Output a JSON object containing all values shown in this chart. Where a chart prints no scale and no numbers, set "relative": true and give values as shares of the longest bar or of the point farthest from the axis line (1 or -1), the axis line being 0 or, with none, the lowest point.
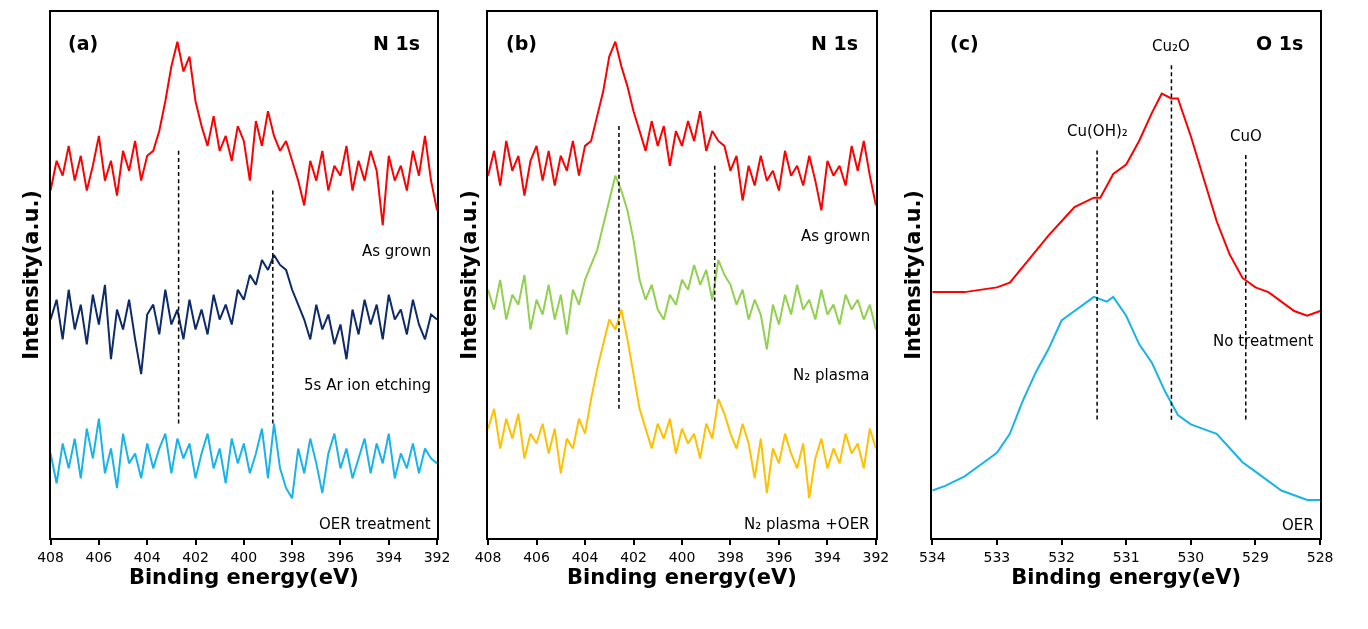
{
  "chart_data": [
    {
      "type": "line",
      "relative": true,
      "xlabel": "Binding energy(eV)",
      "ylabel": "Intensity(a.u.)",
      "annotations": [
        "(a)",
        "N 1s"
      ],
      "xlim": [
        408,
        392
      ],
      "xticks": [
        408,
        406,
        404,
        402,
        400,
        398,
        396,
        394,
        392
      ],
      "tick_labels": "x",
      "x": [
        408,
        407.75,
        407.5,
        407.25,
        407,
        406.75,
        406.5,
        406.25,
        406,
        405.75,
        405.5,
        405.25,
        405,
        404.75,
        404.5,
        404.25,
        404,
        403.75,
        403.5,
        403.25,
        403,
        402.75,
        402.5,
        402.25,
        402,
        401.75,
        401.5,
        401.25,
        401,
        400.75,
        400.5,
        400.25,
        400,
        399.75,
        399.5,
        399.25,
        399,
        398.75,
        398.5,
        398.25,
        398,
        397.75,
        397.5,
        397.25,
        397,
        396.75,
        396.5,
        396.25,
        396,
        395.75,
        395.5,
        395.25,
        395,
        394.75,
        394.5,
        394.25,
        394,
        393.75,
        393.5,
        393.25,
        393,
        392.75,
        392.5,
        392.25,
        392
      ],
      "series": [
        {
          "name": "As grown",
          "color": "#ff0000",
          "values": [
            0.7,
            0.76,
            0.73,
            0.79,
            0.72,
            0.77,
            0.7,
            0.75,
            0.81,
            0.72,
            0.76,
            0.69,
            0.78,
            0.74,
            0.8,
            0.72,
            0.77,
            0.78,
            0.82,
            0.88,
            0.95,
            1.0,
            0.94,
            0.97,
            0.88,
            0.83,
            0.79,
            0.85,
            0.78,
            0.81,
            0.76,
            0.83,
            0.8,
            0.72,
            0.84,
            0.79,
            0.86,
            0.81,
            0.78,
            0.8,
            0.76,
            0.72,
            0.67,
            0.76,
            0.72,
            0.78,
            0.7,
            0.75,
            0.73,
            0.79,
            0.7,
            0.76,
            0.72,
            0.78,
            0.74,
            0.63,
            0.77,
            0.72,
            0.75,
            0.7,
            0.78,
            0.73,
            0.81,
            0.72,
            0.66
          ]
        },
        {
          "name": "5s Ar ion etching",
          "color": "#0d2a6b",
          "values": [
            0.44,
            0.48,
            0.4,
            0.5,
            0.42,
            0.47,
            0.39,
            0.49,
            0.43,
            0.51,
            0.36,
            0.46,
            0.42,
            0.48,
            0.4,
            0.33,
            0.45,
            0.47,
            0.41,
            0.5,
            0.43,
            0.46,
            0.4,
            0.48,
            0.42,
            0.46,
            0.41,
            0.49,
            0.44,
            0.47,
            0.43,
            0.5,
            0.48,
            0.53,
            0.51,
            0.56,
            0.54,
            0.57,
            0.55,
            0.54,
            0.5,
            0.47,
            0.44,
            0.4,
            0.47,
            0.42,
            0.45,
            0.39,
            0.43,
            0.36,
            0.46,
            0.41,
            0.48,
            0.43,
            0.47,
            0.4,
            0.49,
            0.44,
            0.46,
            0.41,
            0.48,
            0.43,
            0.4,
            0.45,
            0.44
          ]
        },
        {
          "name": "OER treatment",
          "color": "#17b3ea",
          "values": [
            0.17,
            0.11,
            0.19,
            0.14,
            0.2,
            0.12,
            0.22,
            0.16,
            0.24,
            0.13,
            0.18,
            0.1,
            0.21,
            0.15,
            0.17,
            0.12,
            0.19,
            0.14,
            0.18,
            0.21,
            0.13,
            0.2,
            0.16,
            0.19,
            0.12,
            0.17,
            0.21,
            0.14,
            0.18,
            0.11,
            0.2,
            0.15,
            0.19,
            0.13,
            0.17,
            0.22,
            0.12,
            0.23,
            0.14,
            0.1,
            0.08,
            0.18,
            0.13,
            0.2,
            0.15,
            0.09,
            0.17,
            0.21,
            0.14,
            0.18,
            0.12,
            0.16,
            0.2,
            0.13,
            0.19,
            0.15,
            0.21,
            0.12,
            0.17,
            0.14,
            0.19,
            0.13,
            0.18,
            0.16,
            0.15
          ]
        },
        {
          "type": "line",
          "color": "#000000",
          "line_style": "dashed",
          "x": [
            402.7,
            402.7
          ],
          "values": [
            0.78,
            0.23
          ]
        },
        {
          "type": "line",
          "color": "#000000",
          "line_style": "dashed",
          "x": [
            398.8,
            398.8
          ],
          "values": [
            0.7,
            0.23
          ]
        }
      ]
    },
    {
      "type": "line",
      "relative": true,
      "xlabel": "Binding energy(eV)",
      "ylabel": "Intensity(a.u.)",
      "annotations": [
        "(b)",
        "N 1s"
      ],
      "xlim": [
        408,
        392
      ],
      "xticks": [
        408,
        406,
        404,
        402,
        400,
        398,
        396,
        394,
        392
      ],
      "tick_labels": "x",
      "x": [
        408,
        407.75,
        407.5,
        407.25,
        407,
        406.75,
        406.5,
        406.25,
        406,
        405.75,
        405.5,
        405.25,
        405,
        404.75,
        404.5,
        404.25,
        404,
        403.75,
        403.5,
        403.25,
        403,
        402.75,
        402.5,
        402.25,
        402,
        401.75,
        401.5,
        401.25,
        401,
        400.75,
        400.5,
        400.25,
        400,
        399.75,
        399.5,
        399.25,
        399,
        398.75,
        398.5,
        398.25,
        398,
        397.75,
        397.5,
        397.25,
        397,
        396.75,
        396.5,
        396.25,
        396,
        395.75,
        395.5,
        395.25,
        395,
        394.75,
        394.5,
        394.25,
        394,
        393.75,
        393.5,
        393.25,
        393,
        392.75,
        392.5,
        392.25,
        392
      ],
      "series": [
        {
          "name": "As grown",
          "color": "#ff0000",
          "values": [
            0.73,
            0.78,
            0.71,
            0.8,
            0.74,
            0.77,
            0.69,
            0.76,
            0.79,
            0.72,
            0.78,
            0.71,
            0.77,
            0.74,
            0.8,
            0.73,
            0.79,
            0.8,
            0.85,
            0.9,
            0.97,
            1.0,
            0.95,
            0.91,
            0.86,
            0.82,
            0.78,
            0.84,
            0.79,
            0.83,
            0.75,
            0.82,
            0.79,
            0.84,
            0.8,
            0.86,
            0.78,
            0.82,
            0.8,
            0.79,
            0.74,
            0.77,
            0.68,
            0.75,
            0.71,
            0.77,
            0.72,
            0.74,
            0.7,
            0.78,
            0.73,
            0.75,
            0.71,
            0.77,
            0.72,
            0.66,
            0.76,
            0.73,
            0.75,
            0.71,
            0.79,
            0.74,
            0.8,
            0.73,
            0.67
          ]
        },
        {
          "name": "N₂ plasma",
          "color": "#92d050",
          "values": [
            0.5,
            0.46,
            0.52,
            0.44,
            0.49,
            0.47,
            0.53,
            0.42,
            0.48,
            0.45,
            0.51,
            0.44,
            0.49,
            0.41,
            0.5,
            0.47,
            0.52,
            0.55,
            0.58,
            0.63,
            0.68,
            0.73,
            0.7,
            0.66,
            0.6,
            0.52,
            0.48,
            0.51,
            0.46,
            0.44,
            0.49,
            0.47,
            0.52,
            0.5,
            0.55,
            0.51,
            0.54,
            0.48,
            0.56,
            0.53,
            0.51,
            0.47,
            0.5,
            0.44,
            0.48,
            0.45,
            0.38,
            0.47,
            0.43,
            0.49,
            0.45,
            0.51,
            0.46,
            0.48,
            0.44,
            0.5,
            0.45,
            0.47,
            0.43,
            0.49,
            0.46,
            0.48,
            0.44,
            0.47,
            0.42
          ]
        },
        {
          "name": "N₂ plasma +OER",
          "color": "#ffc000",
          "values": [
            0.22,
            0.26,
            0.18,
            0.24,
            0.2,
            0.25,
            0.16,
            0.21,
            0.19,
            0.23,
            0.17,
            0.22,
            0.13,
            0.2,
            0.18,
            0.24,
            0.21,
            0.28,
            0.34,
            0.39,
            0.44,
            0.42,
            0.46,
            0.4,
            0.33,
            0.26,
            0.22,
            0.18,
            0.23,
            0.2,
            0.24,
            0.17,
            0.22,
            0.19,
            0.21,
            0.16,
            0.23,
            0.2,
            0.28,
            0.25,
            0.21,
            0.18,
            0.23,
            0.19,
            0.12,
            0.2,
            0.09,
            0.18,
            0.15,
            0.21,
            0.17,
            0.14,
            0.19,
            0.08,
            0.16,
            0.2,
            0.14,
            0.18,
            0.15,
            0.21,
            0.17,
            0.19,
            0.14,
            0.22,
            0.18
          ]
        },
        {
          "type": "line",
          "color": "#000000",
          "line_style": "dashed",
          "x": [
            402.6,
            402.6
          ],
          "values": [
            0.83,
            0.26
          ]
        },
        {
          "type": "line",
          "color": "#000000",
          "line_style": "dashed",
          "x": [
            398.65,
            398.65
          ],
          "values": [
            0.75,
            0.28
          ]
        }
      ]
    },
    {
      "type": "line",
      "relative": true,
      "xlabel": "Binding energy(eV)",
      "ylabel": "Intensity(a.u.)",
      "xlim": [
        534,
        528
      ],
      "xticks": [
        534,
        533,
        532,
        531,
        530,
        529,
        528
      ],
      "tick_labels": "x",
      "annotations": [
        "(c)",
        "O 1s",
        {
          "text": "Cu(OH)₂",
          "x": 531.45,
          "y": 0.82
        },
        {
          "text": "Cu₂O",
          "x": 530.3,
          "y": 1.0
        },
        {
          "text": "CuO",
          "x": 529.15,
          "y": 0.81
        }
      ],
      "series": [
        {
          "name": "No treatment",
          "color": "#ff0000",
          "x": [
            534,
            533.8,
            533.5,
            533,
            532.8,
            532.5,
            532.2,
            532,
            531.8,
            531.5,
            531.4,
            531.2,
            531,
            530.8,
            530.6,
            530.45,
            530.3,
            530.2,
            530,
            529.8,
            529.6,
            529.4,
            529.2,
            529,
            528.8,
            528.6,
            528.4,
            528.2,
            528
          ],
          "values": [
            0.52,
            0.52,
            0.52,
            0.53,
            0.54,
            0.59,
            0.64,
            0.67,
            0.7,
            0.72,
            0.72,
            0.77,
            0.79,
            0.84,
            0.9,
            0.94,
            0.93,
            0.93,
            0.85,
            0.76,
            0.67,
            0.6,
            0.55,
            0.53,
            0.52,
            0.5,
            0.48,
            0.47,
            0.48
          ]
        },
        {
          "name": "OER",
          "color": "#17b3ea",
          "x": [
            534,
            533.8,
            533.5,
            533.2,
            533,
            532.8,
            532.6,
            532.4,
            532.2,
            532,
            531.8,
            531.6,
            531.5,
            531.3,
            531.2,
            531,
            530.8,
            530.6,
            530.4,
            530.2,
            530,
            529.8,
            529.6,
            529.4,
            529.2,
            529,
            528.8,
            528.6,
            528.4,
            528.2,
            528
          ],
          "values": [
            0.1,
            0.11,
            0.13,
            0.16,
            0.18,
            0.22,
            0.29,
            0.35,
            0.4,
            0.46,
            0.48,
            0.5,
            0.51,
            0.5,
            0.51,
            0.47,
            0.41,
            0.37,
            0.31,
            0.26,
            0.24,
            0.23,
            0.22,
            0.19,
            0.16,
            0.14,
            0.12,
            0.1,
            0.09,
            0.08,
            0.08
          ]
        },
        {
          "type": "line",
          "color": "#000000",
          "line_style": "dashed",
          "x": [
            531.45,
            531.45
          ],
          "values": [
            0.82,
            0.25
          ]
        },
        {
          "type": "line",
          "color": "#000000",
          "line_style": "dashed",
          "x": [
            530.3,
            530.3
          ],
          "values": [
            1.0,
            0.25
          ]
        },
        {
          "type": "line",
          "color": "#000000",
          "line_style": "dashed",
          "x": [
            529.15,
            529.15
          ],
          "values": [
            0.81,
            0.25
          ]
        }
      ]
    }
  ]
}
